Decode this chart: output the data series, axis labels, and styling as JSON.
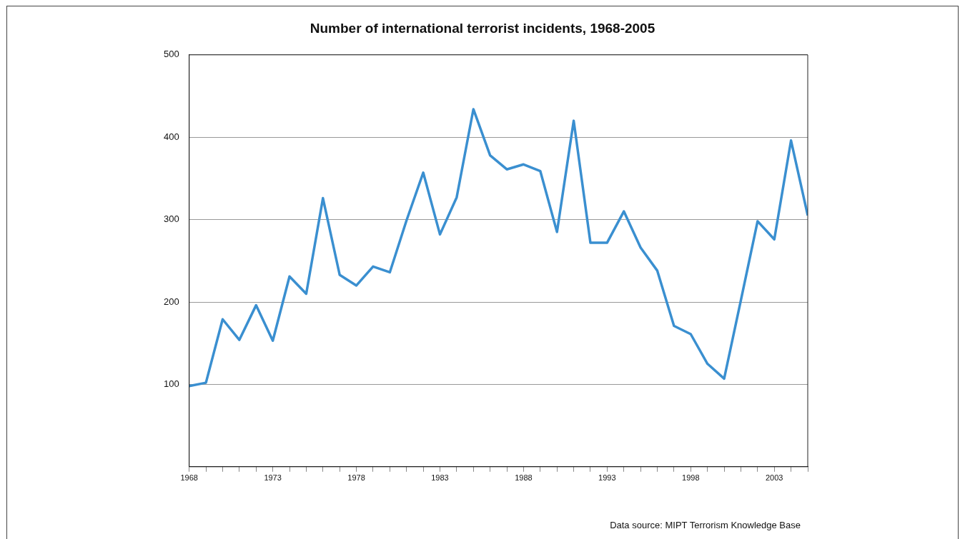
{
  "chart_data": {
    "type": "line",
    "title": "Number of international terrorist incidents, 1968-2005",
    "annotations": [
      "Data source: MIPT Terrorism Knowledge Base"
    ],
    "x": [
      1968,
      1969,
      1970,
      1971,
      1972,
      1973,
      1974,
      1975,
      1976,
      1977,
      1978,
      1979,
      1980,
      1981,
      1982,
      1983,
      1984,
      1985,
      1986,
      1987,
      1988,
      1989,
      1990,
      1991,
      1992,
      1993,
      1994,
      1995,
      1996,
      1997,
      1998,
      1999,
      2000,
      2001,
      2002,
      2003,
      2004,
      2005
    ],
    "series": [
      {
        "color": "#3a8fd0",
        "values": [
          98,
          102,
          179,
          154,
          196,
          153,
          231,
          210,
          326,
          233,
          220,
          243,
          236,
          299,
          357,
          282,
          327,
          434,
          378,
          361,
          367,
          359,
          285,
          420,
          272,
          272,
          310,
          266,
          238,
          171,
          161,
          125,
          107,
          202,
          298,
          276,
          396,
          305
        ]
      }
    ],
    "xlim": [
      1968,
      2005
    ],
    "xticks": [
      1968,
      {
        "value": 1969,
        "label": null
      },
      {
        "value": 1970,
        "label": null
      },
      {
        "value": 1971,
        "label": null
      },
      {
        "value": 1972,
        "label": null
      },
      1973,
      {
        "value": 1974,
        "label": null
      },
      {
        "value": 1975,
        "label": null
      },
      {
        "value": 1976,
        "label": null
      },
      {
        "value": 1977,
        "label": null
      },
      1978,
      {
        "value": 1979,
        "label": null
      },
      {
        "value": 1980,
        "label": null
      },
      {
        "value": 1981,
        "label": null
      },
      {
        "value": 1982,
        "label": null
      },
      1983,
      {
        "value": 1984,
        "label": null
      },
      {
        "value": 1985,
        "label": null
      },
      {
        "value": 1986,
        "label": null
      },
      {
        "value": 1987,
        "label": null
      },
      1988,
      {
        "value": 1989,
        "label": null
      },
      {
        "value": 1990,
        "label": null
      },
      {
        "value": 1991,
        "label": null
      },
      {
        "value": 1992,
        "label": null
      },
      1993,
      {
        "value": 1994,
        "label": null
      },
      {
        "value": 1995,
        "label": null
      },
      {
        "value": 1996,
        "label": null
      },
      {
        "value": 1997,
        "label": null
      },
      1998,
      {
        "value": 1999,
        "label": null
      },
      {
        "value": 2000,
        "label": null
      },
      {
        "value": 2001,
        "label": null
      },
      {
        "value": 2002,
        "label": null
      },
      2003,
      {
        "value": 2004,
        "label": null
      },
      {
        "value": 2005,
        "label": null
      }
    ],
    "ylim": [
      0,
      500
    ],
    "yticks": [
      100,
      200,
      300,
      400,
      500
    ],
    "grid": "y",
    "marker": "none",
    "line_style": "solid"
  }
}
